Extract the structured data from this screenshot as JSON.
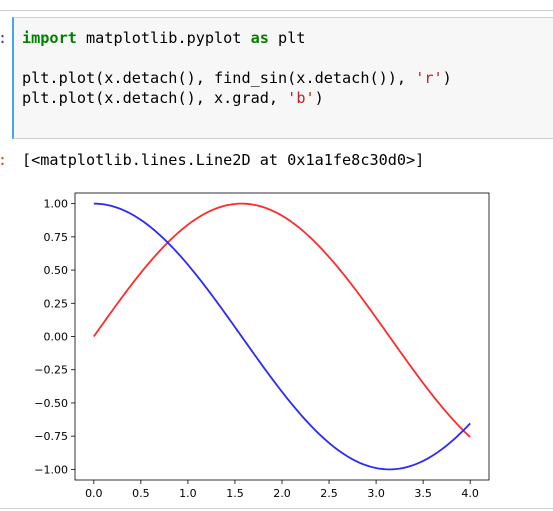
{
  "cell": {
    "in_prompt": ":",
    "out_prompt": ":",
    "code_lines": [
      {
        "parts": [
          {
            "t": "import",
            "c": "kw"
          },
          {
            "t": " matplotlib.pyplot ",
            "c": ""
          },
          {
            "t": "as",
            "c": "kw"
          },
          {
            "t": " plt",
            "c": ""
          }
        ]
      },
      {
        "parts": [
          {
            "t": "",
            "c": ""
          }
        ]
      },
      {
        "parts": [
          {
            "t": "plt.plot(x.detach(), find_sin(x.detach()), ",
            "c": ""
          },
          {
            "t": "'r'",
            "c": "str"
          },
          {
            "t": ")",
            "c": ""
          }
        ]
      },
      {
        "parts": [
          {
            "t": "plt.plot(x.detach(), x.grad, ",
            "c": ""
          },
          {
            "t": "'b'",
            "c": "str"
          },
          {
            "t": ")",
            "c": ""
          }
        ]
      }
    ],
    "output_text": "[<matplotlib.lines.Line2D at 0x1a1fe8c30d0>]"
  },
  "chart_data": {
    "type": "line",
    "xlim": [
      -0.2,
      4.2
    ],
    "ylim": [
      -1.08,
      1.08
    ],
    "xticks": [
      0.0,
      0.5,
      1.0,
      1.5,
      2.0,
      2.5,
      3.0,
      3.5,
      4.0
    ],
    "xtick_labels": [
      "0.0",
      "0.5",
      "1.0",
      "1.5",
      "2.0",
      "2.5",
      "3.0",
      "3.5",
      "4.0"
    ],
    "yticks": [
      1.0,
      0.75,
      0.5,
      0.25,
      0.0,
      -0.25,
      -0.5,
      -0.75,
      -1.0
    ],
    "ytick_labels": [
      "1.00",
      "0.75",
      "0.50",
      "0.25",
      "0.00",
      "−0.25",
      "−0.50",
      "−0.75",
      "−1.00"
    ],
    "series": [
      {
        "function": "sin",
        "color": "#ff2a2a",
        "x_range": [
          0,
          4
        ]
      },
      {
        "function": "cos",
        "color": "#2a2aff",
        "x_range": [
          0,
          4
        ]
      }
    ],
    "grid": false
  }
}
